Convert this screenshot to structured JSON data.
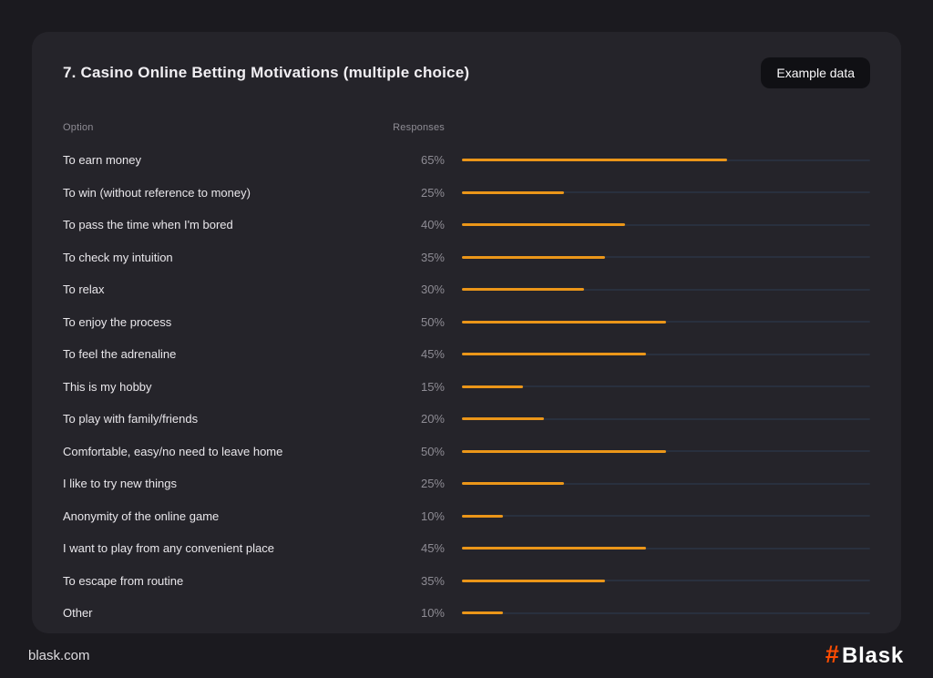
{
  "page": {
    "title": "7. Casino Online Betting Motivations (multiple choice)",
    "badge": "Example data"
  },
  "table": {
    "headers": {
      "option": "Option",
      "responses": "Responses"
    },
    "rows": [
      {
        "label": "To earn money",
        "value_label": "65%",
        "value": 65
      },
      {
        "label": "To win (without reference to money)",
        "value_label": "25%",
        "value": 25
      },
      {
        "label": "To pass the time when I'm bored",
        "value_label": "40%",
        "value": 40
      },
      {
        "label": "To check my intuition",
        "value_label": "35%",
        "value": 35
      },
      {
        "label": "To relax",
        "value_label": "30%",
        "value": 30
      },
      {
        "label": "To enjoy the process",
        "value_label": "50%",
        "value": 50
      },
      {
        "label": "To feel the adrenaline",
        "value_label": "45%",
        "value": 45
      },
      {
        "label": "This is my hobby",
        "value_label": "15%",
        "value": 15
      },
      {
        "label": "To play with family/friends",
        "value_label": "20%",
        "value": 20
      },
      {
        "label": "Comfortable, easy/no need to leave home",
        "value_label": "50%",
        "value": 50
      },
      {
        "label": "I like to try new things",
        "value_label": "25%",
        "value": 25
      },
      {
        "label": "Anonymity of the online game",
        "value_label": "10%",
        "value": 10
      },
      {
        "label": "I want to play from any convenient place",
        "value_label": "45%",
        "value": 45
      },
      {
        "label": "To escape from routine",
        "value_label": "35%",
        "value": 35
      },
      {
        "label": "Other",
        "value_label": "10%",
        "value": 10
      }
    ]
  },
  "chart_data": {
    "type": "bar",
    "orientation": "horizontal",
    "title": "7. Casino Online Betting Motivations (multiple choice)",
    "categories": [
      "To earn money",
      "To win (without reference to money)",
      "To pass the time when I'm bored",
      "To check my intuition",
      "To relax",
      "To enjoy the process",
      "To feel the adrenaline",
      "This is my hobby",
      "To play with family/friends",
      "Comfortable, easy/no need to leave home",
      "I like to try new things",
      "Anonymity of the online game",
      "I want to play from any convenient place",
      "To escape from routine",
      "Other"
    ],
    "values": [
      65,
      25,
      40,
      35,
      30,
      50,
      45,
      15,
      20,
      50,
      25,
      10,
      45,
      35,
      10
    ],
    "value_suffix": "%",
    "xlabel": "Responses",
    "ylabel": "Option",
    "xlim": [
      0,
      100
    ],
    "grid": false,
    "legend": false,
    "bar_color": "#eb9619",
    "track_color": "#29303e"
  },
  "footer": {
    "site": "blask.com",
    "brand_hash": "#",
    "brand_name": "Blask"
  },
  "colors": {
    "page_bg": "#1b1a1f",
    "card_bg": "#25242a",
    "bar": "#eb9619",
    "track": "#29303e",
    "title": "#f1eff3",
    "label": "#e9e7eb",
    "muted": "#8e8c94",
    "badge_bg": "#101014",
    "badge_text": "#faf9fb",
    "footer_text": "#dedce0",
    "brand_hash": "#fc4c02",
    "brand_text": "#ffffff"
  }
}
